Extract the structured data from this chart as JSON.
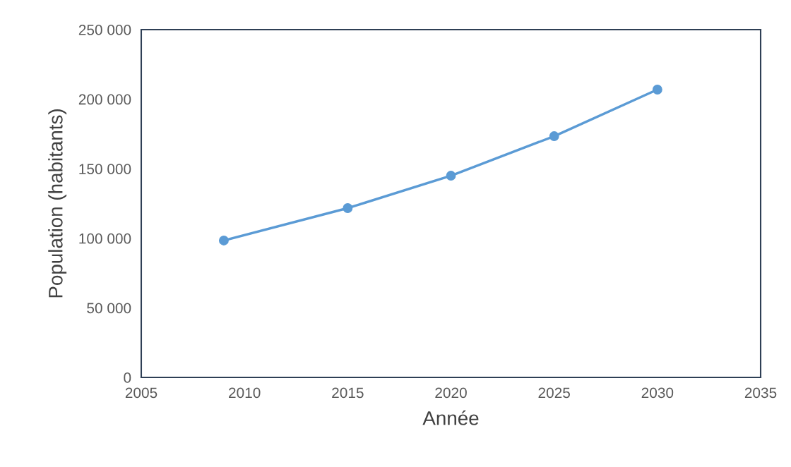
{
  "chart_data": {
    "type": "line",
    "xlabel": "Année",
    "ylabel": "Population (habitants)",
    "x": [
      2009,
      2015,
      2020,
      2025,
      2030
    ],
    "series": [
      {
        "color": "#5b9bd5",
        "values": [
          98400,
          121700,
          145000,
          173400,
          206900
        ]
      }
    ],
    "xlim": [
      2005,
      2035
    ],
    "xticks": [
      2005,
      2010,
      2015,
      2020,
      2025,
      2030,
      2035
    ],
    "ylim": [
      0,
      250000
    ],
    "yticks": [
      {
        "value": 0,
        "label": "0"
      },
      {
        "value": 50000,
        "label": "50 000"
      },
      {
        "value": 100000,
        "label": "100 000"
      },
      {
        "value": 150000,
        "label": "150 000"
      },
      {
        "value": 200000,
        "label": "200 000"
      },
      {
        "value": 250000,
        "label": "250 000"
      }
    ],
    "grid": false,
    "legend": false,
    "marker": "circle",
    "line_style": "solid"
  }
}
